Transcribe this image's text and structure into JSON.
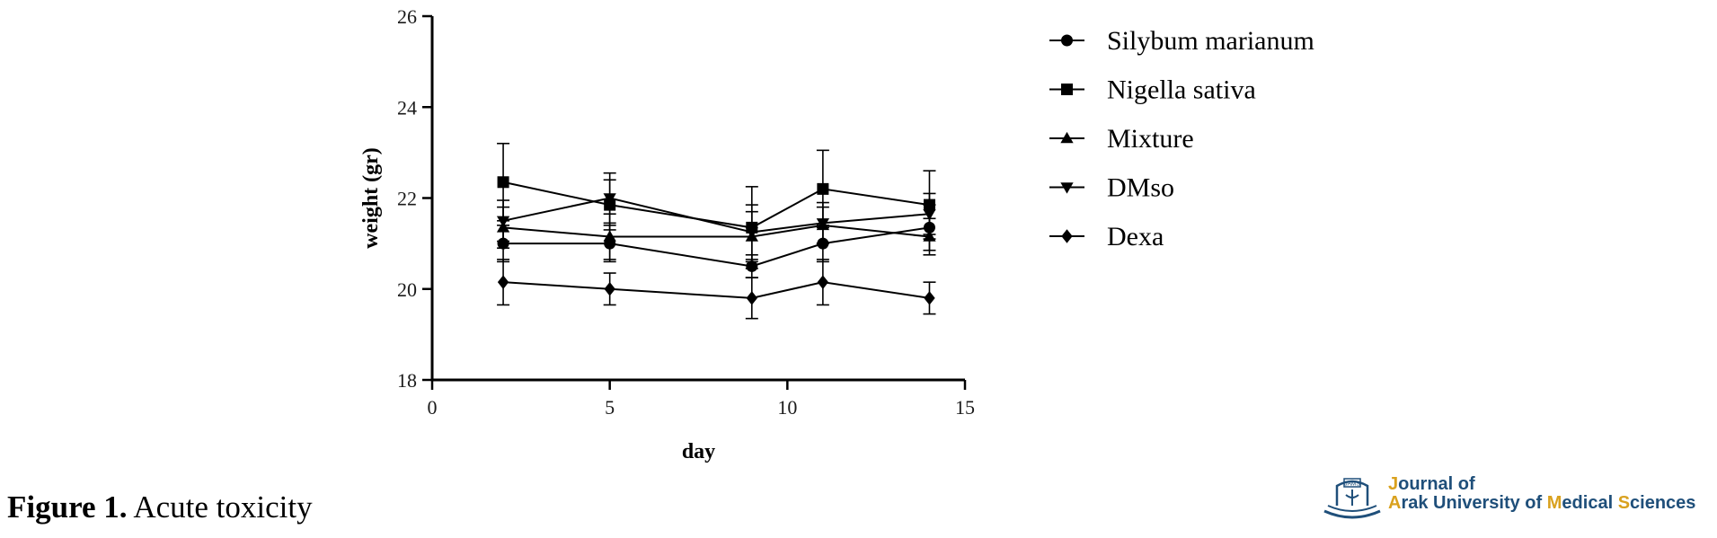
{
  "chart_data": {
    "type": "line",
    "title": "",
    "xlabel": "day",
    "ylabel": "weight (gr)",
    "xlim": [
      0,
      15
    ],
    "ylim": [
      18,
      26
    ],
    "xticks": [
      "0",
      "5",
      "10",
      "15"
    ],
    "yticks": [
      "18",
      "20",
      "22",
      "24",
      "26"
    ],
    "grid": false,
    "legend_position": "right",
    "x": [
      2,
      5,
      9,
      11,
      14
    ],
    "series": [
      {
        "name": "Silybum marianum",
        "marker": "circle",
        "values": [
          21.0,
          21.0,
          20.5,
          21.0,
          21.35
        ],
        "errors": [
          0.4,
          0.4,
          0.25,
          0.4,
          0.5
        ]
      },
      {
        "name": "Nigella sativa",
        "marker": "square",
        "values": [
          22.35,
          21.85,
          21.35,
          22.2,
          21.85
        ],
        "errors": [
          0.85,
          0.55,
          0.9,
          0.85,
          0.75
        ]
      },
      {
        "name": "Mixture",
        "marker": "triangle-up",
        "values": [
          21.35,
          21.15,
          21.15,
          21.4,
          21.15
        ],
        "errors": [
          0.45,
          0.5,
          0.55,
          0.4,
          0.4
        ]
      },
      {
        "name": "DMso",
        "marker": "triangle-down",
        "values": [
          21.5,
          22.0,
          21.25,
          21.45,
          21.65
        ],
        "errors": [
          0.45,
          0.55,
          0.6,
          0.45,
          0.45
        ]
      },
      {
        "name": "Dexa",
        "marker": "diamond",
        "values": [
          20.15,
          20.0,
          19.8,
          20.15,
          19.8
        ],
        "errors": [
          0.5,
          0.35,
          0.45,
          0.5,
          0.35
        ]
      }
    ]
  },
  "caption": {
    "lead": "Figure 1.",
    "text": " Acute toxicity"
  },
  "logo": {
    "line1": [
      "J",
      "ournal of"
    ],
    "line2": [
      "A",
      "rak University of ",
      "M",
      "edical ",
      "S",
      "ciences"
    ],
    "emblem_text": "JAMS"
  }
}
